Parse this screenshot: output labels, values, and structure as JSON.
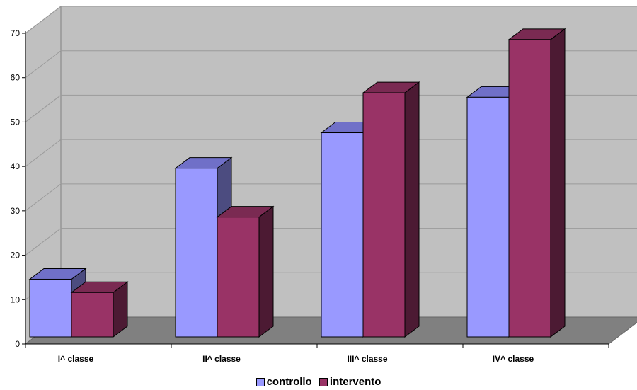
{
  "chart_data": {
    "type": "bar",
    "style": "3d-clustered-column",
    "categories": [
      "I^  classe",
      "II^ classe",
      "III^ classe",
      "IV^ classe"
    ],
    "series": [
      {
        "name": "controllo",
        "values": [
          13,
          38,
          46,
          54
        ],
        "color": "#9999ff",
        "side_color": "#4c4c80",
        "top_color": "#7070c8"
      },
      {
        "name": "intervento",
        "values": [
          10,
          27,
          55,
          67
        ],
        "color": "#993366",
        "side_color": "#4c1a33",
        "top_color": "#7a2a52"
      }
    ],
    "ylim": [
      0,
      70
    ],
    "yticks": [
      0,
      10,
      20,
      30,
      40,
      50,
      60,
      70
    ],
    "title": "",
    "xlabel": "",
    "ylabel": "",
    "grid": true,
    "wall_color": "#c0c0c0",
    "floor_color": "#808080",
    "legend_position": "bottom"
  }
}
